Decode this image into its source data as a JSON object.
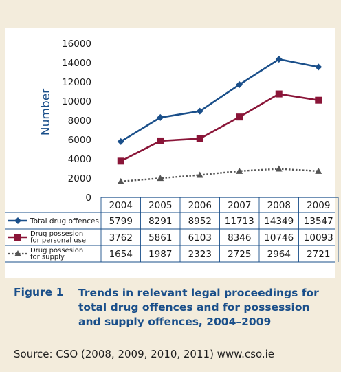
{
  "chart_data": {
    "type": "line",
    "ylabel": "Number",
    "ylim": [
      0,
      16000
    ],
    "yticks": [
      0,
      2000,
      4000,
      6000,
      8000,
      10000,
      12000,
      14000,
      16000
    ],
    "categories": [
      "2004",
      "2005",
      "2006",
      "2007",
      "2008",
      "2009"
    ],
    "series": [
      {
        "name": "Total drug offences",
        "color": "#1a4f8a",
        "marker": "diamond",
        "line": "solid",
        "values": [
          5799,
          8291,
          8952,
          11713,
          14349,
          13547
        ],
        "table_values": [
          "5799",
          "8291",
          "8952",
          "11713",
          "14349",
          "13547"
        ]
      },
      {
        "name": "Drug possesion for personal use",
        "name_lines": [
          "Drug possesion",
          "for personal use"
        ],
        "color": "#8a1538",
        "marker": "square",
        "line": "solid",
        "values": [
          3762,
          5861,
          6103,
          8346,
          10746,
          10093
        ],
        "table_values": [
          "3762",
          "5861",
          "6103",
          "8346",
          "10746",
          "10093"
        ]
      },
      {
        "name": "Drug possesion for supply",
        "name_lines": [
          "Drug possesion",
          "for supply"
        ],
        "color": "#555555",
        "marker": "triangle",
        "line": "dotted",
        "values": [
          1654,
          1987,
          2323,
          2725,
          2964,
          2721
        ],
        "table_values": [
          "1654",
          "1987",
          "2323",
          "2725",
          "2964",
          "2721"
        ]
      }
    ],
    "grid": false
  },
  "caption": {
    "label": "Figure 1",
    "title": "Trends in relevant legal proceedings for total drug offences and for possession and supply offences, 2004–2009"
  },
  "source": "Source: CSO (2008, 2009, 2010, 2011) www.cso.ie",
  "colors": {
    "background": "#f3ecdc",
    "plot_background": "#ffffff",
    "caption_text": "#1a4f8a",
    "axis": "#1a4f8a"
  }
}
